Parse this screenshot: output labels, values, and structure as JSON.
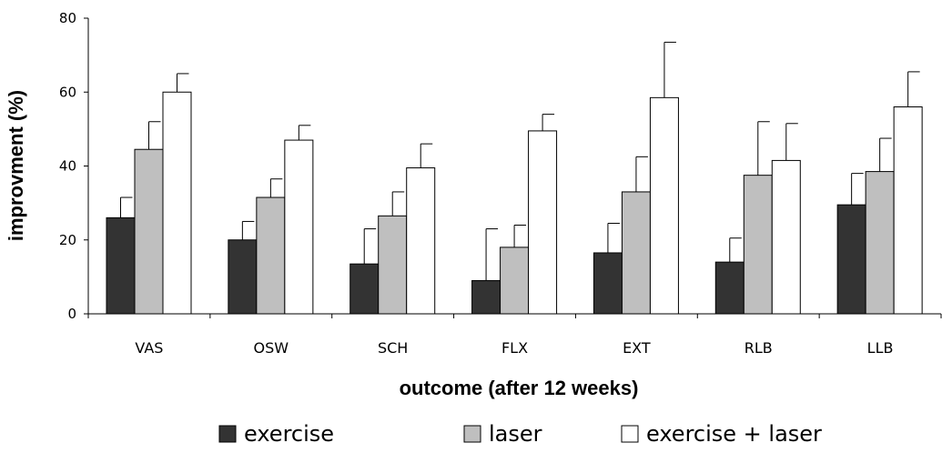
{
  "chart_data": {
    "type": "bar",
    "xlabel": "outcome (after 12 weeks)",
    "ylabel": "improvment (%)",
    "ylim": [
      0,
      80
    ],
    "yticks": [
      0,
      20,
      40,
      60,
      80
    ],
    "categories": [
      "VAS",
      "OSW",
      "SCH",
      "FLX",
      "EXT",
      "RLB",
      "LLB"
    ],
    "series": [
      {
        "name": "exercise",
        "color": "#333333",
        "values": [
          26.0,
          20.0,
          13.5,
          9.0,
          16.5,
          14.0,
          29.5
        ],
        "errors": [
          5.5,
          5.0,
          9.5,
          14.0,
          8.0,
          6.5,
          8.5
        ]
      },
      {
        "name": "laser",
        "color": "#bfbfbf",
        "values": [
          44.5,
          31.5,
          26.5,
          18.0,
          33.0,
          37.5,
          38.5
        ],
        "errors": [
          7.5,
          5.0,
          6.5,
          6.0,
          9.5,
          14.5,
          9.0
        ]
      },
      {
        "name": "exercise + laser",
        "color": "#ffffff",
        "values": [
          60.0,
          47.0,
          39.5,
          49.5,
          58.5,
          41.5,
          56.0
        ],
        "errors": [
          5.0,
          4.0,
          6.5,
          4.5,
          15.0,
          10.0,
          9.5
        ]
      }
    ],
    "legend_position": "bottom-center",
    "grid": false
  }
}
